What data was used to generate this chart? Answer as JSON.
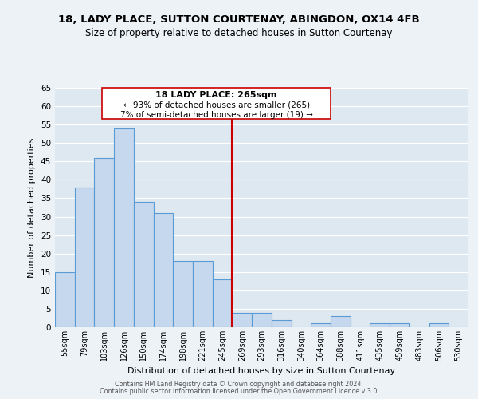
{
  "title1": "18, LADY PLACE, SUTTON COURTENAY, ABINGDON, OX14 4FB",
  "title2": "Size of property relative to detached houses in Sutton Courtenay",
  "xlabel": "Distribution of detached houses by size in Sutton Courtenay",
  "ylabel": "Number of detached properties",
  "footer1": "Contains HM Land Registry data © Crown copyright and database right 2024.",
  "footer2": "Contains public sector information licensed under the Open Government Licence v 3.0.",
  "bar_labels": [
    "55sqm",
    "79sqm",
    "103sqm",
    "126sqm",
    "150sqm",
    "174sqm",
    "198sqm",
    "221sqm",
    "245sqm",
    "269sqm",
    "293sqm",
    "316sqm",
    "340sqm",
    "364sqm",
    "388sqm",
    "411sqm",
    "435sqm",
    "459sqm",
    "483sqm",
    "506sqm",
    "530sqm"
  ],
  "bar_values": [
    15,
    38,
    46,
    54,
    34,
    31,
    18,
    18,
    13,
    4,
    4,
    2,
    0,
    1,
    3,
    0,
    1,
    1,
    0,
    1,
    0
  ],
  "bar_color": "#c5d8ed",
  "bar_edge_color": "#5b9bd5",
  "ref_line_color": "#cc0000",
  "reference_label": "18 LADY PLACE: 265sqm",
  "annotation_line1": "← 93% of detached houses are smaller (265)",
  "annotation_line2": "7% of semi-detached houses are larger (19) →",
  "ylim": [
    0,
    65
  ],
  "yticks": [
    0,
    5,
    10,
    15,
    20,
    25,
    30,
    35,
    40,
    45,
    50,
    55,
    60,
    65
  ],
  "background_color": "#edf2f7",
  "plot_bg_color": "#dde8f0",
  "grid_color": "#ffffff",
  "title1_fontsize": 9.5,
  "title2_fontsize": 8.5
}
